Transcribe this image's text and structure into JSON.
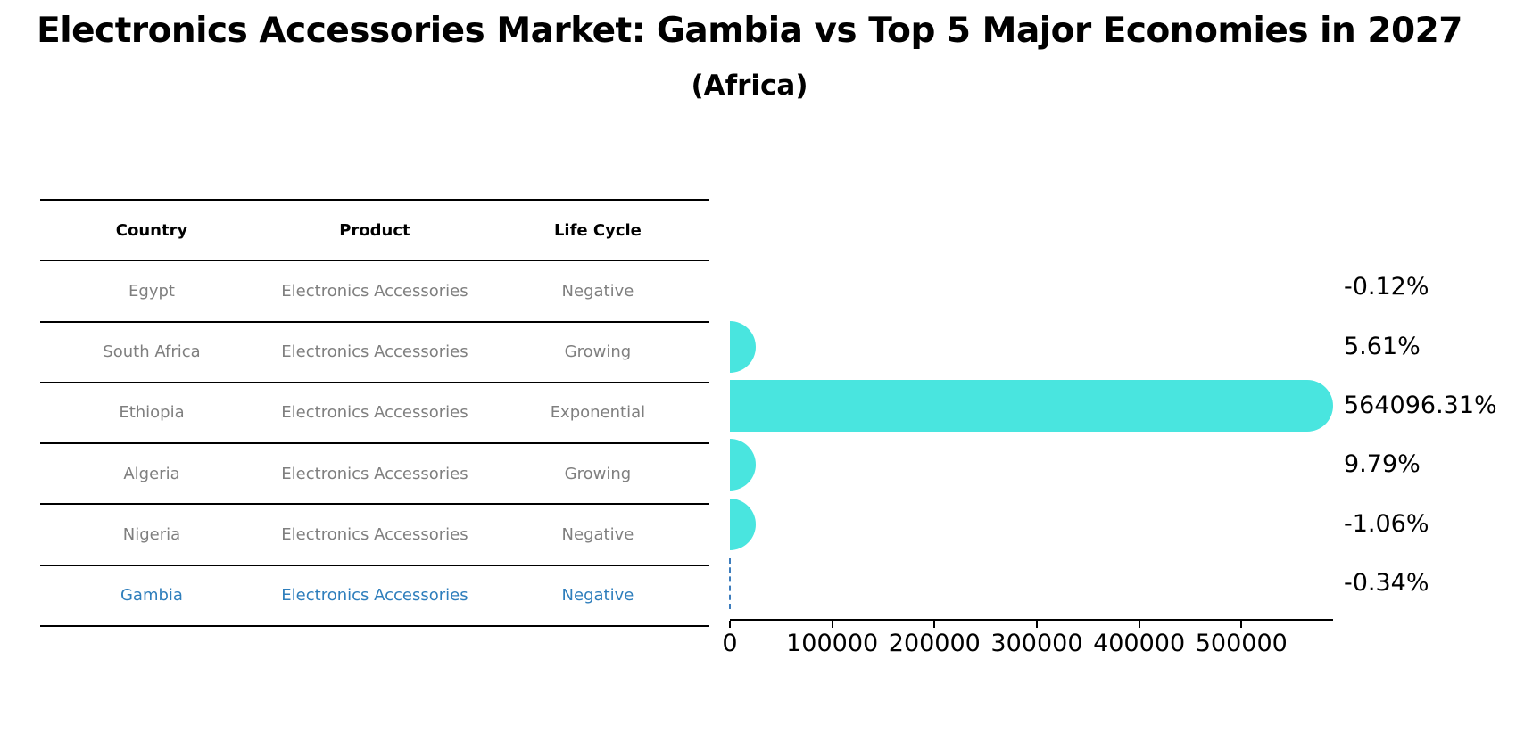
{
  "title": "Electronics Accessories Market: Gambia vs Top 5 Major Economies in 2027",
  "subtitle": "(Africa)",
  "table": {
    "headers": [
      "Country",
      "Product",
      "Life Cycle"
    ],
    "rows": [
      {
        "country": "Egypt",
        "product": "Electronics Accessories",
        "life_cycle": "Negative",
        "highlighted": false
      },
      {
        "country": "South Africa",
        "product": "Electronics Accessories",
        "life_cycle": "Growing",
        "highlighted": false
      },
      {
        "country": "Ethiopia",
        "product": "Electronics Accessories",
        "life_cycle": "Exponential",
        "highlighted": false
      },
      {
        "country": "Algeria",
        "product": "Electronics Accessories",
        "life_cycle": "Growing",
        "highlighted": false
      },
      {
        "country": "Nigeria",
        "product": "Electronics Accessories",
        "life_cycle": "Negative",
        "highlighted": false
      },
      {
        "country": "Gambia",
        "product": "Electronics Accessories",
        "life_cycle": "Negative",
        "highlighted": true
      }
    ]
  },
  "chart_data": {
    "type": "bar",
    "orientation": "horizontal",
    "title": "Electronics Accessories Market: Gambia vs Top 5 Major Economies in 2027",
    "subtitle": "(Africa)",
    "categories": [
      "Egypt",
      "South Africa",
      "Ethiopia",
      "Algeria",
      "Nigeria",
      "Gambia"
    ],
    "values": [
      -0.12,
      5.61,
      564096.31,
      9.79,
      -1.06,
      -0.34
    ],
    "value_labels": [
      "-0.12%",
      "5.61%",
      "564096.31%",
      "9.79%",
      "-1.06%",
      "-0.34%"
    ],
    "bar_styles": [
      "none",
      "cap",
      "bar",
      "cap",
      "cap",
      "dashed"
    ],
    "xlabel": "",
    "ylabel": "",
    "xlim": [
      0,
      590000
    ],
    "x_ticks": [
      0,
      100000,
      200000,
      300000,
      400000,
      500000
    ],
    "x_tick_labels": [
      "0",
      "100000",
      "200000",
      "300000",
      "400000",
      "500000"
    ],
    "grid": false,
    "legend": false,
    "bar_color": "#49E5DF",
    "zero_line_color": "#3d7dbd",
    "highlight_color": "#2e7ebc",
    "text_color": "#7f7f7f"
  }
}
